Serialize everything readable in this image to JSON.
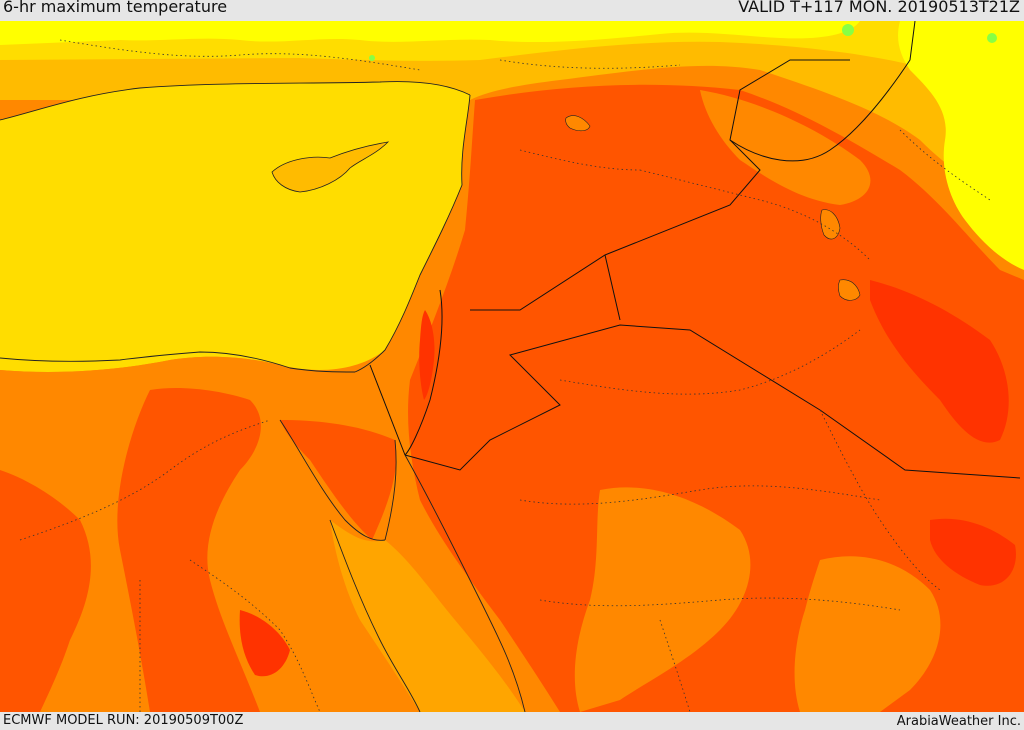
{
  "header": {
    "title": "6-hr maximum temperature",
    "valid": "VALID T+117 MON. 20190513T21Z"
  },
  "footer": {
    "model_run": "ECMWF MODEL RUN: 20190509T00Z",
    "credit": "ArabiaWeather Inc."
  },
  "palette": {
    "sea_yellow": "#ffdd00",
    "bright_yellow": "#ffff00",
    "light_orange": "#ffbb00",
    "orange": "#ffa500",
    "dark_orange": "#ff8800",
    "red_orange": "#ff5500",
    "red": "#ff3300",
    "green": "#88ff44"
  }
}
